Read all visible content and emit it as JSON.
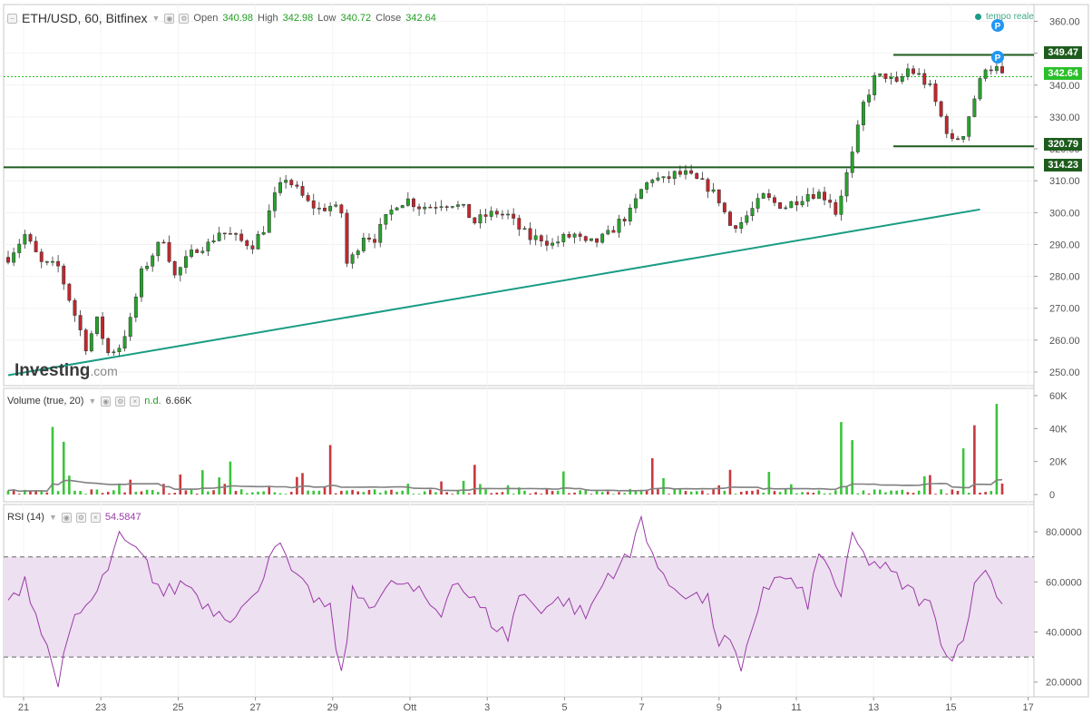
{
  "header": {
    "symbol": "ETH/USD, 60, Bitfinex",
    "open_label": "Open",
    "open": "340.98",
    "high_label": "High",
    "high": "342.98",
    "low_label": "Low",
    "low": "340.72",
    "close_label": "Close",
    "close": "342.64",
    "realtime_label": "tempo reale"
  },
  "volume_header": {
    "title": "Volume (true, 20)",
    "value1": "n.d.",
    "value2": "6.66K"
  },
  "rsi_header": {
    "title": "RSI (14)",
    "value": "54.5847"
  },
  "watermark": {
    "text": "Investing",
    "suffix": ".com"
  },
  "colors": {
    "up": "#26a32a",
    "down": "#c1272d",
    "trendline": "#1a9c84",
    "level": "#1e5c1e",
    "rsi": "#9a3aa8",
    "rsi_band": "#ede0f0",
    "volume_ma": "#808080"
  },
  "chart_data": [
    {
      "type": "candlestick",
      "title": "ETH/USD, 60, Bitfinex",
      "x_ticks": [
        "21",
        "23",
        "25",
        "27",
        "29",
        "Ott",
        "3",
        "5",
        "7",
        "9",
        "11",
        "13",
        "15",
        "17"
      ],
      "y_ticks": [
        "360.00",
        "350.00",
        "340.00",
        "330.00",
        "320.00",
        "310.00",
        "300.00",
        "290.00",
        "280.00",
        "270.00",
        "260.00",
        "250.00"
      ],
      "ylim": [
        248,
        363
      ],
      "grid": true,
      "anchors": [
        [
          0,
          286
        ],
        [
          3,
          293
        ],
        [
          6,
          284
        ],
        [
          9,
          283
        ],
        [
          12,
          268
        ],
        [
          14,
          258
        ],
        [
          16,
          266
        ],
        [
          18,
          256
        ],
        [
          20,
          258
        ],
        [
          22,
          266
        ],
        [
          24,
          281
        ],
        [
          26,
          287
        ],
        [
          28,
          292
        ],
        [
          30,
          280
        ],
        [
          32,
          285
        ],
        [
          34,
          289
        ],
        [
          36,
          290
        ],
        [
          38,
          294
        ],
        [
          40,
          293
        ],
        [
          42,
          291
        ],
        [
          44,
          290
        ],
        [
          46,
          295
        ],
        [
          48,
          305
        ],
        [
          50,
          311
        ],
        [
          52,
          307
        ],
        [
          54,
          303
        ],
        [
          56,
          301
        ],
        [
          58,
          302
        ],
        [
          60,
          300
        ],
        [
          61,
          284
        ],
        [
          62,
          286
        ],
        [
          64,
          293
        ],
        [
          66,
          292
        ],
        [
          68,
          298
        ],
        [
          70,
          303
        ],
        [
          72,
          304
        ],
        [
          74,
          302
        ],
        [
          76,
          302
        ],
        [
          78,
          303
        ],
        [
          80,
          303
        ],
        [
          82,
          301
        ],
        [
          84,
          297
        ],
        [
          86,
          299
        ],
        [
          88,
          300
        ],
        [
          90,
          299
        ],
        [
          92,
          295
        ],
        [
          94,
          292
        ],
        [
          96,
          292
        ],
        [
          98,
          290
        ],
        [
          100,
          292
        ],
        [
          102,
          293
        ],
        [
          104,
          290
        ],
        [
          106,
          291
        ],
        [
          108,
          293
        ],
        [
          110,
          297
        ],
        [
          112,
          300
        ],
        [
          114,
          307
        ],
        [
          116,
          311
        ],
        [
          118,
          310
        ],
        [
          120,
          312
        ],
        [
          122,
          312
        ],
        [
          124,
          310
        ],
        [
          126,
          308
        ],
        [
          128,
          304
        ],
        [
          130,
          296
        ],
        [
          132,
          297
        ],
        [
          134,
          301
        ],
        [
          136,
          305
        ],
        [
          138,
          303
        ],
        [
          140,
          302
        ],
        [
          142,
          304
        ],
        [
          144,
          306
        ],
        [
          146,
          306
        ],
        [
          148,
          304
        ],
        [
          149,
          300
        ],
        [
          150,
          306
        ],
        [
          152,
          318
        ],
        [
          154,
          334
        ],
        [
          156,
          342
        ],
        [
          158,
          343
        ],
        [
          160,
          340
        ],
        [
          162,
          345
        ],
        [
          164,
          343
        ],
        [
          166,
          339
        ],
        [
          168,
          330
        ],
        [
          170,
          322
        ],
        [
          172,
          325
        ],
        [
          174,
          336
        ],
        [
          176,
          346
        ],
        [
          178,
          345
        ],
        [
          179,
          342.64
        ]
      ],
      "levels": [
        349.47,
        342.64,
        320.79,
        314.23
      ],
      "level_labels": [
        "349.47",
        "342.64",
        "320.79",
        "314.23"
      ],
      "trendline": [
        [
          0,
          249
        ],
        [
          175,
          301
        ]
      ]
    },
    {
      "type": "bar",
      "title": "Volume (true, 20)",
      "y_ticks": [
        "60K",
        "40K",
        "20K",
        "0"
      ],
      "ylim": [
        0,
        60000
      ],
      "spikes": [
        [
          8,
          41000
        ],
        [
          10,
          32000
        ],
        [
          22,
          9000
        ],
        [
          40,
          20000
        ],
        [
          58,
          30000
        ],
        [
          84,
          18000
        ],
        [
          100,
          14000
        ],
        [
          116,
          22000
        ],
        [
          130,
          15000
        ],
        [
          150,
          44000
        ],
        [
          152,
          33000
        ],
        [
          172,
          28000
        ],
        [
          174,
          42000
        ],
        [
          178,
          55000
        ],
        [
          179,
          6660
        ]
      ]
    },
    {
      "type": "line",
      "title": "RSI (14)",
      "y_ticks": [
        "80.0000",
        "60.0000",
        "40.0000",
        "20.0000"
      ],
      "ylim": [
        17,
        88
      ],
      "bands": [
        30,
        70
      ],
      "anchors": [
        [
          0,
          50
        ],
        [
          3,
          62
        ],
        [
          6,
          40
        ],
        [
          9,
          20
        ],
        [
          12,
          45
        ],
        [
          16,
          55
        ],
        [
          20,
          77
        ],
        [
          24,
          70
        ],
        [
          28,
          55
        ],
        [
          32,
          60
        ],
        [
          36,
          50
        ],
        [
          40,
          47
        ],
        [
          44,
          52
        ],
        [
          48,
          77
        ],
        [
          52,
          60
        ],
        [
          56,
          52
        ],
        [
          58,
          48
        ],
        [
          60,
          22
        ],
        [
          62,
          55
        ],
        [
          66,
          52
        ],
        [
          70,
          60
        ],
        [
          74,
          55
        ],
        [
          78,
          47
        ],
        [
          80,
          62
        ],
        [
          84,
          52
        ],
        [
          88,
          42
        ],
        [
          90,
          38
        ],
        [
          92,
          55
        ],
        [
          96,
          50
        ],
        [
          100,
          53
        ],
        [
          104,
          46
        ],
        [
          108,
          63
        ],
        [
          112,
          70
        ],
        [
          114,
          86
        ],
        [
          116,
          72
        ],
        [
          118,
          60
        ],
        [
          122,
          56
        ],
        [
          126,
          52
        ],
        [
          128,
          36
        ],
        [
          130,
          36
        ],
        [
          132,
          22
        ],
        [
          134,
          42
        ],
        [
          136,
          58
        ],
        [
          140,
          62
        ],
        [
          144,
          52
        ],
        [
          146,
          70
        ],
        [
          148,
          66
        ],
        [
          150,
          52
        ],
        [
          152,
          79
        ],
        [
          154,
          70
        ],
        [
          158,
          65
        ],
        [
          162,
          57
        ],
        [
          166,
          50
        ],
        [
          168,
          38
        ],
        [
          170,
          28
        ],
        [
          172,
          40
        ],
        [
          174,
          57
        ],
        [
          176,
          67
        ],
        [
          178,
          53
        ],
        [
          179,
          54.58
        ]
      ]
    }
  ]
}
